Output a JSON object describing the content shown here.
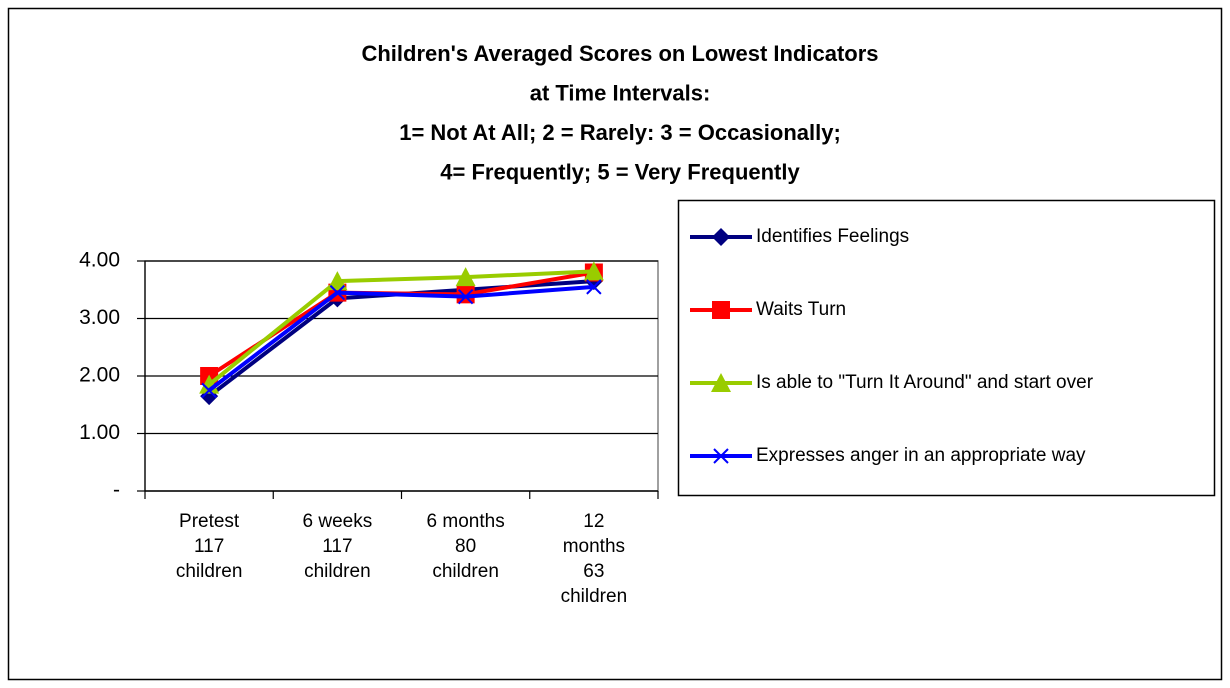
{
  "chart_data": {
    "type": "line",
    "title": [
      "Children's Averaged Scores on Lowest Indicators",
      "at Time Intervals:",
      "1= Not At All;  2 = Rarely:  3 = Occasionally;",
      "4= Frequently;  5 = Very Frequently"
    ],
    "categories": [
      [
        "Pretest",
        "117",
        "children"
      ],
      [
        "6 weeks",
        "117",
        "children"
      ],
      [
        "6 months",
        "80",
        "children"
      ],
      [
        "12",
        "months",
        "63",
        "children"
      ]
    ],
    "series": [
      {
        "name": "Identifies Feelings",
        "color": "#000080",
        "marker": "diamond",
        "values": [
          1.65,
          3.35,
          3.5,
          3.65
        ]
      },
      {
        "name": "Waits Turn",
        "color": "#ff0000",
        "marker": "square",
        "values": [
          2.0,
          3.45,
          3.42,
          3.8
        ]
      },
      {
        "name": "Is able to \"Turn It Around\" and start over",
        "color": "#99cc00",
        "marker": "triangle",
        "values": [
          1.85,
          3.65,
          3.72,
          3.82
        ]
      },
      {
        "name": "Expresses anger in an appropriate way",
        "color": "#0000ff",
        "marker": "x",
        "values": [
          1.75,
          3.45,
          3.38,
          3.55
        ]
      }
    ],
    "ylim": [
      0,
      4
    ],
    "yticks": [
      {
        "value": 0,
        "label": "-"
      },
      {
        "value": 1,
        "label": "1.00"
      },
      {
        "value": 2,
        "label": "2.00"
      },
      {
        "value": 3,
        "label": "3.00"
      },
      {
        "value": 4,
        "label": "4.00"
      }
    ],
    "grid": true,
    "legend": "right"
  }
}
